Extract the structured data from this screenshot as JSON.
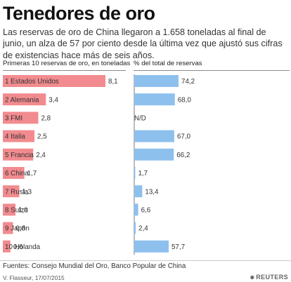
{
  "header": {
    "title": "Tenedores de oro",
    "subtitle": "Las reservas de oro de China llegaron a 1.658 toneladas al final de junio, un alza de 57 por ciento desde la última vez que ajustó sus cifras de existencias hace más de seis años."
  },
  "footer": {
    "source": "Fuentes: Consejo Mundial del Oro, Banco Popular de China",
    "byline": "V. Flasseur, 17/07/2015",
    "logo_text": "REUTERS"
  },
  "colors": {
    "left_bar": "#f28b8f",
    "right_bar": "#8ec0ee",
    "axis": "#777777"
  },
  "chart_data": [
    {
      "type": "bar",
      "orientation": "horizontal",
      "title": "Primeras 10 reservas de oro, en toneladas",
      "categories": [
        "1 Estados Unidos",
        "2 Alemania",
        "3 FMI",
        "4 Italia",
        "5 Francia",
        "6 China",
        "7 Rusia",
        "8 Suiza",
        "9 Japón",
        "10 Holanda"
      ],
      "values": [
        8.1,
        3.4,
        2.8,
        2.5,
        2.4,
        1.7,
        1.3,
        1.0,
        0.8,
        0.6
      ],
      "value_labels": [
        "8,1",
        "3,4",
        "2,8",
        "2,5",
        "2,4",
        "1,7",
        "1,3",
        "1,0",
        "0,8",
        "0,6"
      ],
      "xlim": [
        0,
        8.1
      ]
    },
    {
      "type": "bar",
      "orientation": "horizontal",
      "title": "% del total de reservas",
      "categories": [
        "1 Estados Unidos",
        "2 Alemania",
        "3 FMI",
        "4 Italia",
        "5 Francia",
        "6 China",
        "7 Rusia",
        "8 Suiza",
        "9 Japón",
        "10 Holanda"
      ],
      "values": [
        74.2,
        68.0,
        null,
        67.0,
        66.2,
        1.7,
        13.4,
        6.6,
        2.4,
        57.7
      ],
      "value_labels": [
        "74,2",
        "68,0",
        "N/D",
        "67,0",
        "66,2",
        "1,7",
        "13,4",
        "6,6",
        "2,4",
        "57,7"
      ],
      "xlim": [
        0,
        74.2
      ]
    }
  ]
}
